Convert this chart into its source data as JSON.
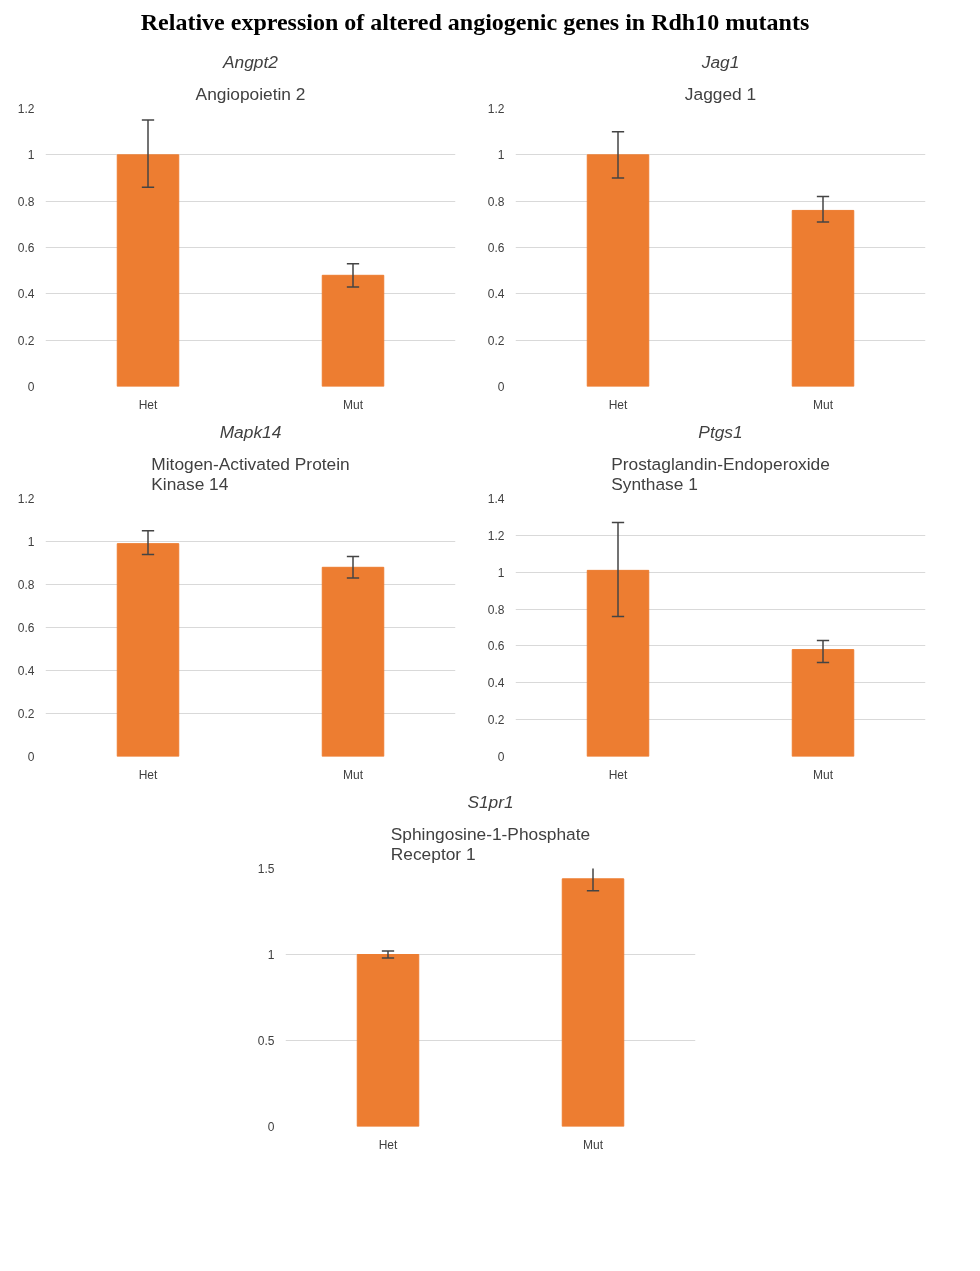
{
  "chart_data": [
    {
      "type": "other",
      "title": "Relative expression of altered angiogenic genes in Rdh10 mutants"
    },
    {
      "type": "bar",
      "title": "Angpt2",
      "subtitle": "Angiopoietin 2",
      "categories": [
        "Het",
        "Mut"
      ],
      "values": [
        1.0,
        0.48
      ],
      "errors": [
        [
          0.86,
          1.15
        ],
        [
          0.43,
          0.53
        ]
      ],
      "color": "#ed7d31",
      "ylim": [
        0,
        1.2
      ],
      "yticks": [
        0,
        0.2,
        0.4,
        0.6,
        0.8,
        1,
        1.2
      ],
      "grid": "y"
    },
    {
      "type": "bar",
      "title": "Jag1",
      "subtitle": "Jagged 1",
      "categories": [
        "Het",
        "Mut"
      ],
      "values": [
        1.0,
        0.76
      ],
      "errors": [
        [
          0.9,
          1.1
        ],
        [
          0.71,
          0.82
        ]
      ],
      "color": "#ed7d31",
      "ylim": [
        0,
        1.2
      ],
      "yticks": [
        0,
        0.2,
        0.4,
        0.6,
        0.8,
        1,
        1.2
      ],
      "grid": "y"
    },
    {
      "type": "bar",
      "title": "Mapk14",
      "subtitle": "Mitogen-Activated Protein Kinase 14",
      "categories": [
        "Het",
        "Mut"
      ],
      "values": [
        0.99,
        0.88
      ],
      "errors": [
        [
          0.94,
          1.05
        ],
        [
          0.83,
          0.93
        ]
      ],
      "color": "#ed7d31",
      "ylim": [
        0,
        1.2
      ],
      "yticks": [
        0,
        0.2,
        0.4,
        0.6,
        0.8,
        1,
        1.2
      ],
      "grid": "y"
    },
    {
      "type": "bar",
      "title": "Ptgs1",
      "subtitle": "Prostaglandin-Endoperoxide Synthase 1",
      "categories": [
        "Het",
        "Mut"
      ],
      "values": [
        1.01,
        0.58
      ],
      "errors": [
        [
          0.76,
          1.27
        ],
        [
          0.51,
          0.63
        ]
      ],
      "color": "#ed7d31",
      "ylim": [
        0,
        1.4
      ],
      "yticks": [
        0,
        0.2,
        0.4,
        0.6,
        0.8,
        1,
        1.2,
        1.4
      ],
      "grid": "y"
    },
    {
      "type": "bar",
      "title": "S1pr1",
      "subtitle": "Sphingosine-1-Phosphate Receptor 1",
      "categories": [
        "Het",
        "Mut"
      ],
      "values": [
        1.0,
        1.44
      ],
      "errors": [
        [
          0.98,
          1.02
        ],
        [
          1.37,
          1.52
        ]
      ],
      "color": "#ed7d31",
      "ylim": [
        0,
        1.5
      ],
      "yticks": [
        0,
        0.5,
        1,
        1.5
      ],
      "grid": "y"
    }
  ]
}
